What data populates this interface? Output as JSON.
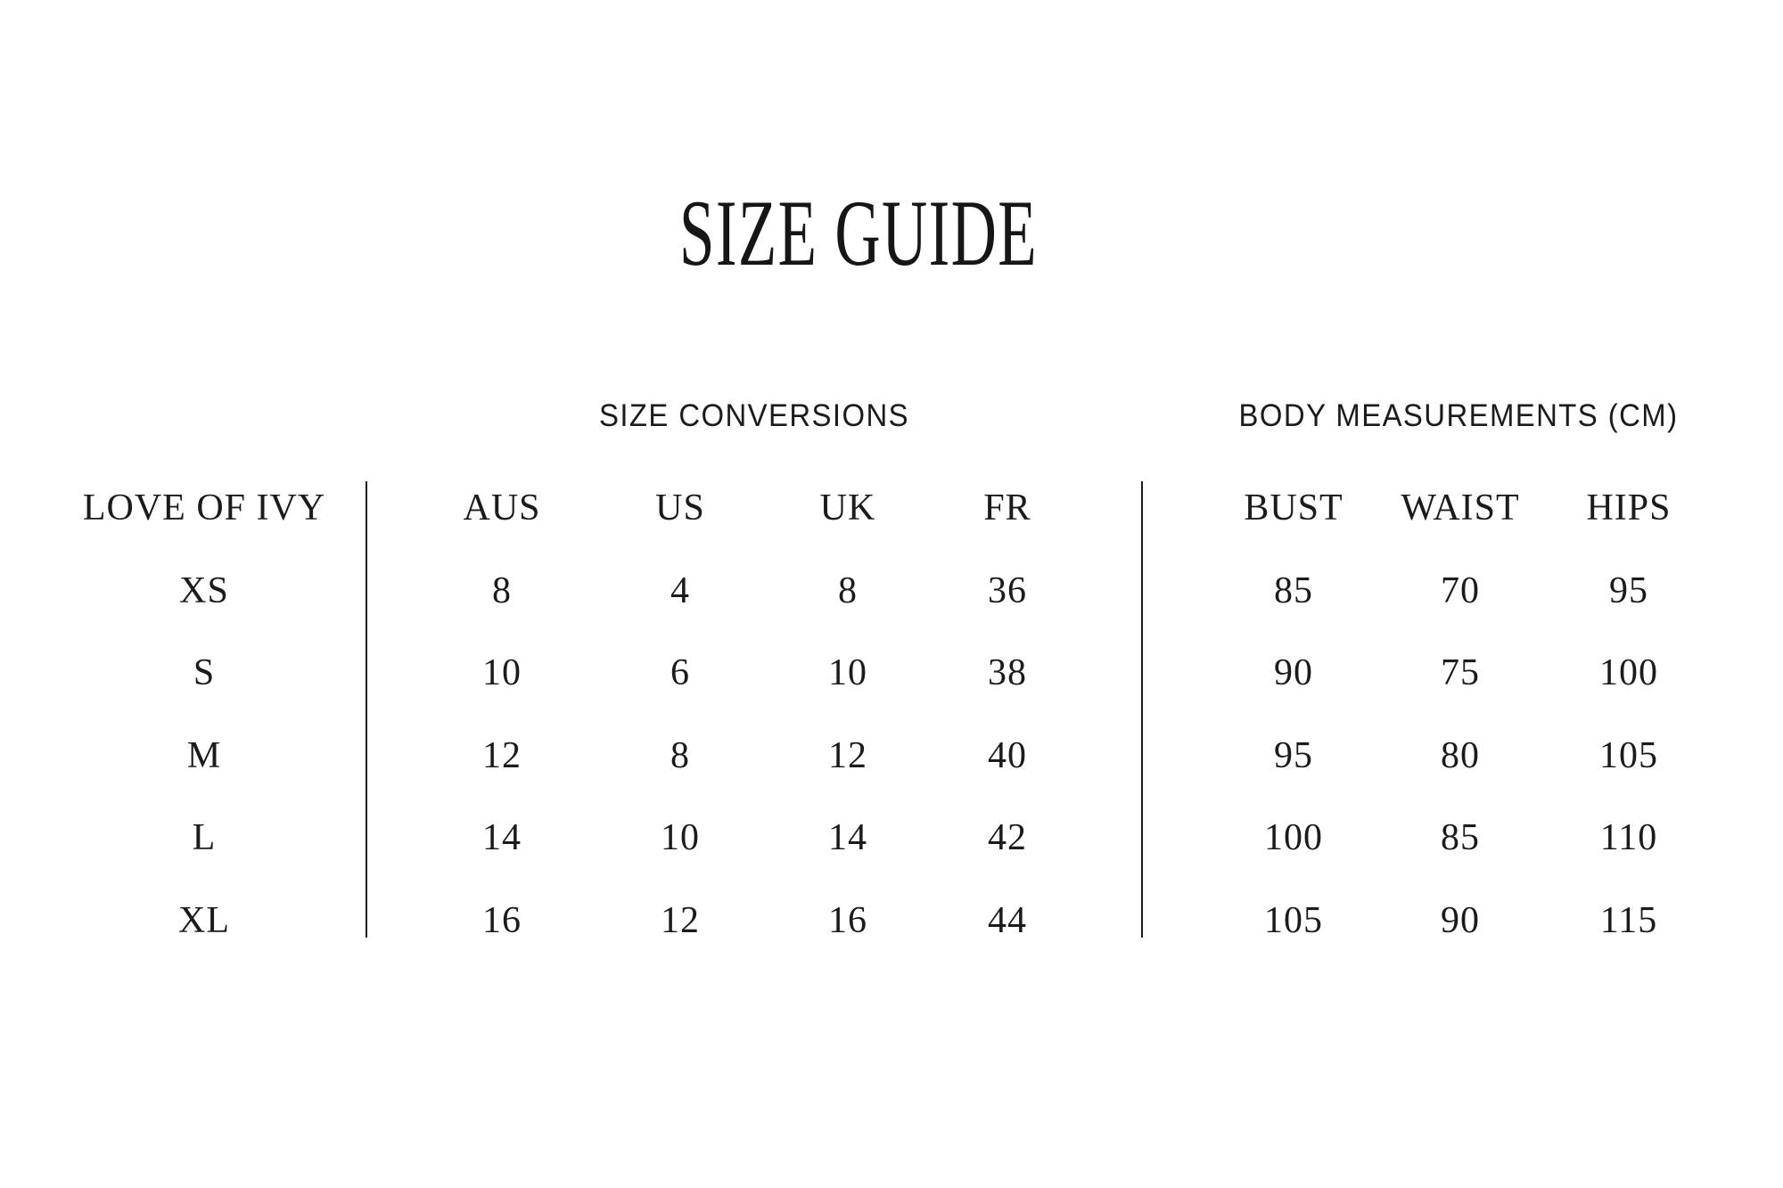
{
  "page": {
    "title": "SIZE GUIDE"
  },
  "colors": {
    "background": "#ffffff",
    "text": "#1b1b1b",
    "divider_line": "#1c1c1c"
  },
  "sections": {
    "conversions_label": "SIZE CONVERSIONS",
    "measurements_label": "BODY MEASUREMENTS (CM)"
  },
  "table": {
    "brand_column_header": "LOVE OF IVY",
    "conversion_headers": [
      "AUS",
      "US",
      "UK",
      "FR"
    ],
    "measurement_headers": [
      "BUST",
      "WAIST",
      "HIPS"
    ],
    "rows": [
      {
        "size": "XS",
        "aus": "8",
        "us": "4",
        "uk": "8",
        "fr": "36",
        "bust": "85",
        "waist": "70",
        "hips": "95"
      },
      {
        "size": "S",
        "aus": "10",
        "us": "6",
        "uk": "10",
        "fr": "38",
        "bust": "90",
        "waist": "75",
        "hips": "100"
      },
      {
        "size": "M",
        "aus": "12",
        "us": "8",
        "uk": "12",
        "fr": "40",
        "bust": "95",
        "waist": "80",
        "hips": "105"
      },
      {
        "size": "L",
        "aus": "14",
        "us": "10",
        "uk": "14",
        "fr": "42",
        "bust": "100",
        "waist": "85",
        "hips": "110"
      },
      {
        "size": "XL",
        "aus": "16",
        "us": "12",
        "uk": "16",
        "fr": "44",
        "bust": "105",
        "waist": "90",
        "hips": "115"
      }
    ]
  }
}
